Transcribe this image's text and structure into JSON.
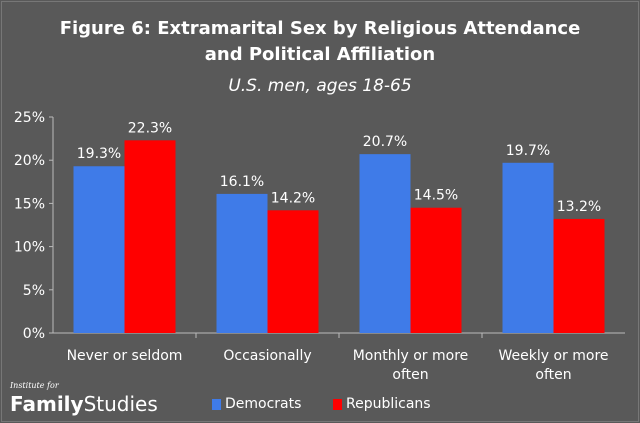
{
  "chart_data": {
    "type": "bar",
    "title_line1": "Figure 6: Extramarital Sex by Religious Attendance",
    "title_line2": "and Political Affiliation",
    "subtitle": "U.S. men, ages 18-65",
    "categories": [
      "Never or seldom",
      "Occasionally",
      "Monthly or more often",
      "Weekly or more often"
    ],
    "series": [
      {
        "name": "Democrats",
        "color": "#3f7be8",
        "values": [
          19.3,
          16.1,
          20.7,
          19.7
        ],
        "labels": [
          "19.3%",
          "16.1%",
          "20.7%",
          "19.7%"
        ]
      },
      {
        "name": "Republicans",
        "color": "#ff0000",
        "values": [
          22.3,
          14.2,
          14.5,
          13.2
        ],
        "labels": [
          "22.3%",
          "14.2%",
          "14.5%",
          "13.2%"
        ]
      }
    ],
    "yticks": [
      "0%",
      "5%",
      "10%",
      "15%",
      "20%",
      "25%"
    ],
    "ylim": [
      0,
      25
    ],
    "grid": false,
    "legend": "bottom"
  },
  "logo": {
    "small": "Institute for",
    "bold": "Family",
    "light": "Studies"
  }
}
